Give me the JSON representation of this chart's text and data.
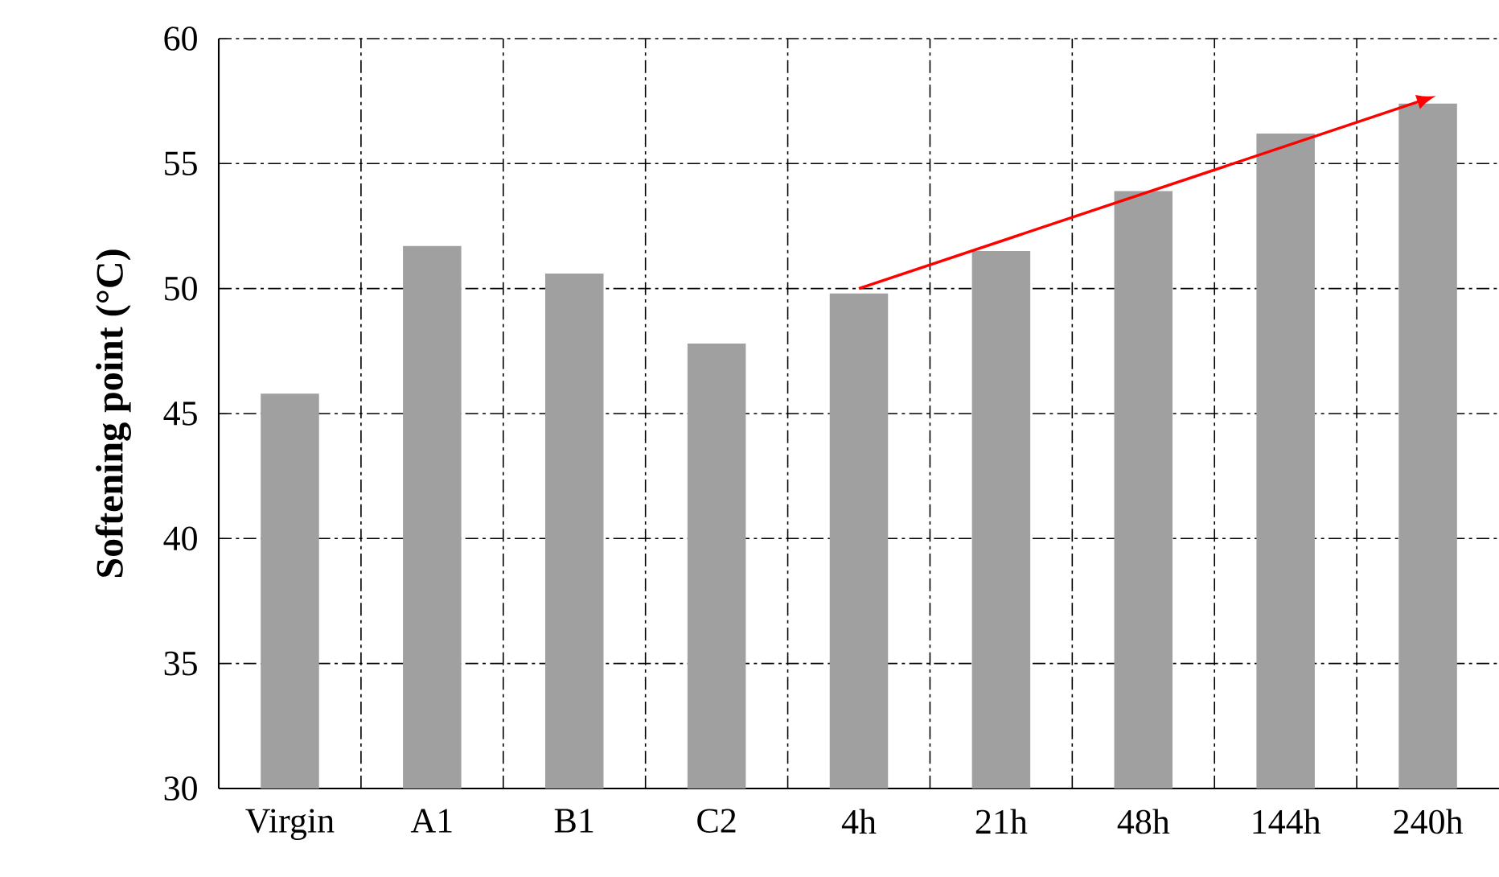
{
  "chart_data": {
    "type": "bar",
    "ylabel": "Softening point (°C)",
    "categories": [
      "Virgin",
      "A1",
      "B1",
      "C2",
      "4h",
      "21h",
      "48h",
      "144h",
      "240h"
    ],
    "series": [
      {
        "color": "#a0a0a0",
        "values": [
          45.8,
          51.7,
          50.6,
          47.8,
          49.8,
          51.5,
          53.9,
          56.2,
          57.4
        ]
      },
      {
        "type": "line",
        "color": "#ff0000",
        "values": [
          null,
          null,
          null,
          null,
          50.0,
          null,
          null,
          null,
          57.6
        ]
      }
    ],
    "ylim": [
      30,
      60
    ],
    "yticks": [
      30,
      35,
      40,
      45,
      50,
      55,
      60
    ],
    "grid": true
  }
}
